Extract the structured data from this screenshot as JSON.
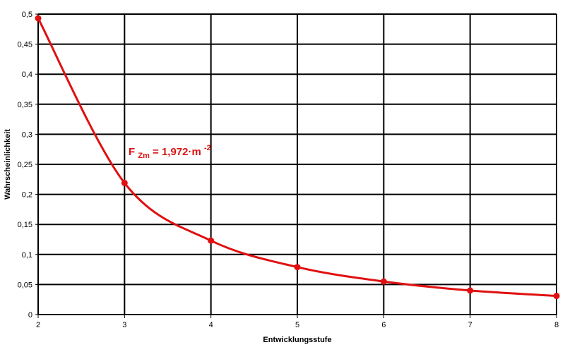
{
  "chart_data": {
    "type": "line",
    "xlabel": "Entwicklungsstufe",
    "ylabel": "Wahrscheinlichkeit",
    "xlim": [
      2,
      8
    ],
    "ylim": [
      0,
      0.5
    ],
    "x_ticks": [
      "2",
      "3",
      "4",
      "5",
      "6",
      "7",
      "8"
    ],
    "y_ticks": [
      "0",
      "0,05",
      "0,1",
      "0,15",
      "0,2",
      "0,25",
      "0,3",
      "0,35",
      "0,4",
      "0,45",
      "0,5"
    ],
    "grid": true,
    "series": [
      {
        "x": [
          2,
          3,
          4,
          5,
          6,
          7,
          8
        ],
        "y": [
          0.493,
          0.219,
          0.123,
          0.079,
          0.055,
          0.04,
          0.031
        ],
        "color": "#e01010",
        "marker": "circle",
        "smooth": true
      }
    ],
    "annotation": {
      "prefix": "F",
      "subscript": "Zm",
      "body": " = 1,972·m",
      "superscript": "-2",
      "color": "#d81313"
    }
  }
}
